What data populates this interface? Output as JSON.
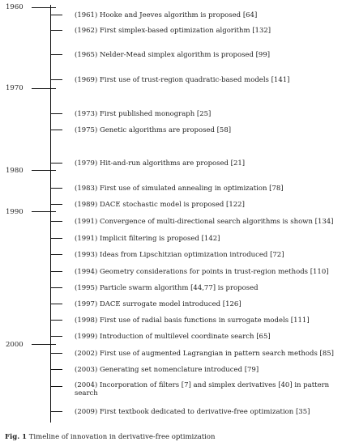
{
  "timeline": {
    "years": [
      {
        "label": "1960"
      },
      {
        "label": "1970"
      },
      {
        "label": "1980"
      },
      {
        "label": "1990"
      },
      {
        "label": "2000"
      }
    ],
    "events": [
      {
        "text": "(1961) Hooke and Jeeves algorithm is proposed [64]"
      },
      {
        "text": "(1962) First simplex-based optimization algorithm [132]"
      },
      {
        "text": "(1965) Nelder-Mead simplex algorithm is proposed [99]"
      },
      {
        "text": "(1969) First use of trust-region quadratic-based models [141]"
      },
      {
        "text": "(1973) First published monograph [25]"
      },
      {
        "text": "(1975) Genetic algorithms are proposed [58]"
      },
      {
        "text": "(1979) Hit-and-run algorithms are proposed [21]"
      },
      {
        "text": "(1983) First use of simulated annealing in optimization [78]"
      },
      {
        "text": "(1989) DACE stochastic model is proposed [122]"
      },
      {
        "text": "(1991) Convergence of multi-directional search algorithms is shown [134]"
      },
      {
        "text": "(1991) Implicit filtering is proposed [142]"
      },
      {
        "text": "(1993) Ideas from Lipschitzian optimization introduced [72]"
      },
      {
        "text": "(1994) Geometry considerations for points in trust-region methods [110]"
      },
      {
        "text": "(1995) Particle swarm algorithm [44,77] is proposed"
      },
      {
        "text": "(1997) DACE surrogate model introduced [126]"
      },
      {
        "text": "(1998) First use of radial basis functions in surrogate models [111]"
      },
      {
        "text": "(1999) Introduction of multilevel coordinate search [65]"
      },
      {
        "text": "(2002) First use of augmented Lagrangian in pattern search methods [85]"
      },
      {
        "text": "(2003) Generating set nomenclature introduced [79]"
      },
      {
        "text": "(2004) Incorporation of filters [7] and simplex derivatives [40] in pattern search"
      },
      {
        "text": "(2009) First textbook dedicated to derivative-free optimization [35]"
      }
    ]
  },
  "caption": {
    "label": "Fig. 1",
    "text": "Timeline of innovation in derivative-free optimization"
  }
}
